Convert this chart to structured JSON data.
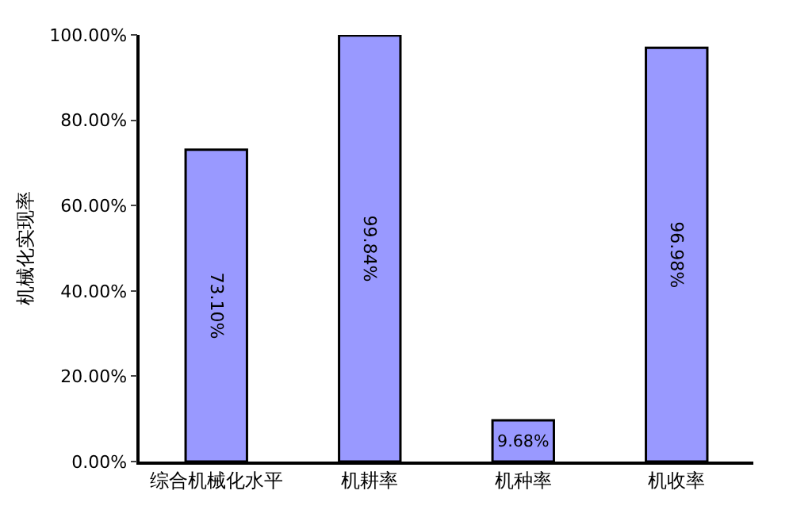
{
  "chart_data": {
    "type": "bar",
    "ylabel": "机械化实现率",
    "categories": [
      "综合机械化水平",
      "机耕率",
      "机种率",
      "机收率"
    ],
    "values": [
      73.1,
      99.84,
      9.68,
      96.98
    ],
    "value_labels": [
      "73.10%",
      "99.84%",
      "9.68%",
      "96.98%"
    ],
    "color": "#9999ff",
    "ylim": [
      0,
      100
    ],
    "yticks": [
      {
        "value": 0,
        "label": "0.00%"
      },
      {
        "value": 20,
        "label": "20.00%"
      },
      {
        "value": 40,
        "label": "40.00%"
      },
      {
        "value": 60,
        "label": "60.00%"
      },
      {
        "value": 80,
        "label": "80.00%"
      },
      {
        "value": 100,
        "label": "100.00%"
      }
    ],
    "grid": false,
    "legend": false
  }
}
